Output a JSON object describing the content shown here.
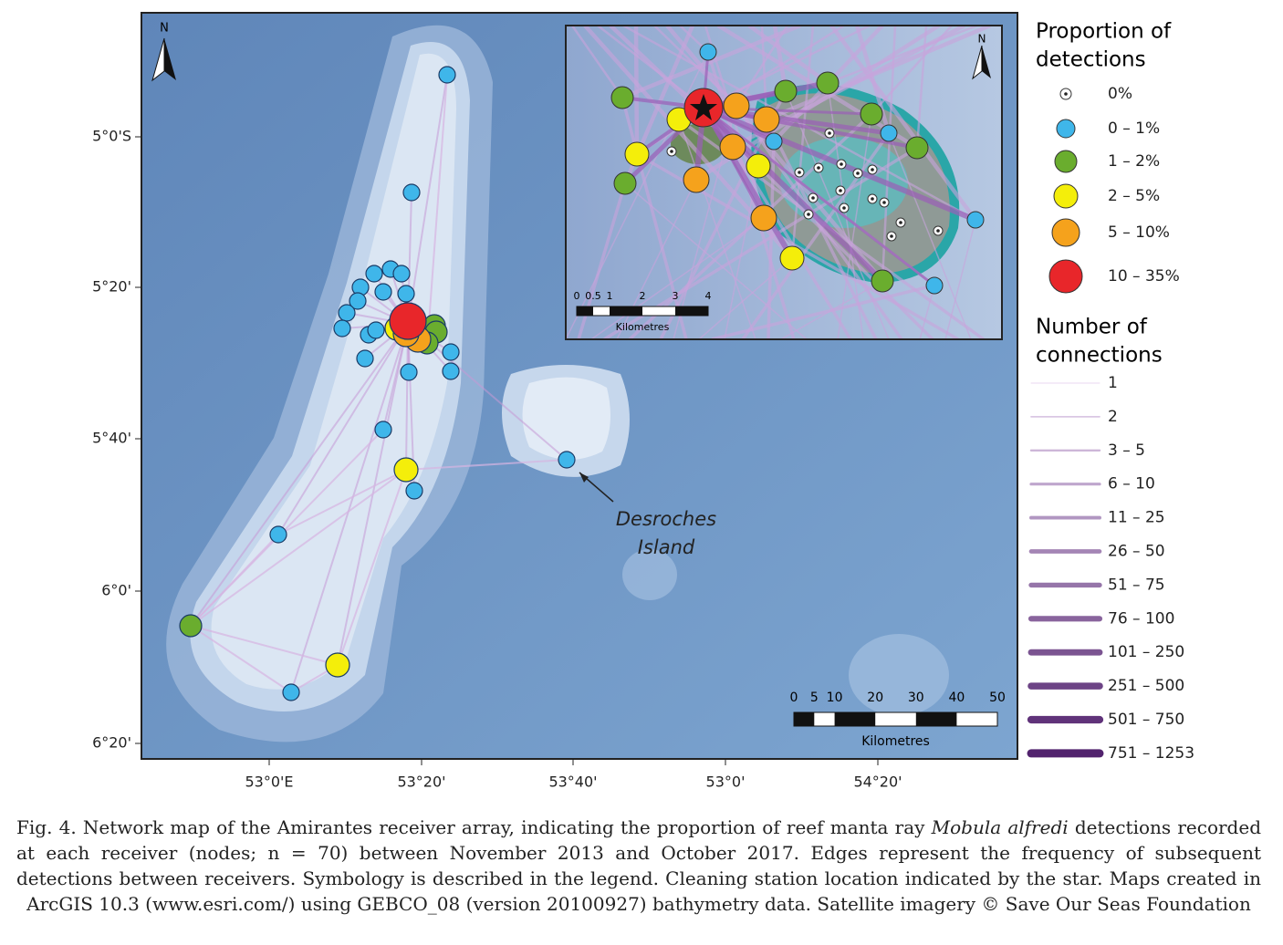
{
  "map": {
    "north_label": "N",
    "lat_labels": [
      "5°0'S",
      "5°20'",
      "5°40'",
      "6°0'",
      "6°20'"
    ],
    "lon_labels": [
      "53°0'E",
      "53°20'",
      "53°40'",
      "53°0'",
      "54°20'"
    ],
    "annotation": [
      "Desroches",
      "Island"
    ],
    "scale_bar": {
      "ticks": [
        "0",
        "5",
        "10",
        "20",
        "30",
        "40",
        "50"
      ],
      "unit": "Kilometres"
    }
  },
  "inset": {
    "north_label": "N",
    "scale_bar": {
      "ticks": [
        "0",
        "0.5",
        "1",
        "2",
        "3",
        "4"
      ],
      "unit": "Kilometres"
    }
  },
  "legend": {
    "detections_title": [
      "Proportion of",
      "detections"
    ],
    "detections": [
      {
        "label": "0%",
        "color": "#ffffff"
      },
      {
        "label": "0 – 1%",
        "color": "#3fb6ea"
      },
      {
        "label": "1 – 2%",
        "color": "#6aad2e"
      },
      {
        "label": "2 – 5%",
        "color": "#f4ee0a"
      },
      {
        "label": "5 – 10%",
        "color": "#f5a21c"
      },
      {
        "label": "10 – 35%",
        "color": "#e8262a"
      }
    ],
    "connections_title": [
      "Number of",
      "connections"
    ],
    "connections": [
      "1",
      "2",
      "3 – 5",
      "6 – 10",
      "11 – 25",
      "26 – 50",
      "51 – 75",
      "76 – 100",
      "101 – 250",
      "251 – 500",
      "501 – 750",
      "751 – 1253"
    ]
  },
  "caption": [
    "Fig. 4. Network map of the Amirantes receiver array, indicating the proportion of reef manta ray ",
    "Mobula alfredi",
    " detections recorded at each receiver (nodes; n = 70) between November 2013 and October 2017. Edges represent the frequency of subsequent detections between receivers. Symbology is described in the legend. Cleaning station location indicated by the star. Maps created in ArcGIS 10.3 (www.esri.com/) using GEBCO_08 (version 20100927) bathymetry data. Satellite imagery © Save Our Seas Foundation"
  ]
}
